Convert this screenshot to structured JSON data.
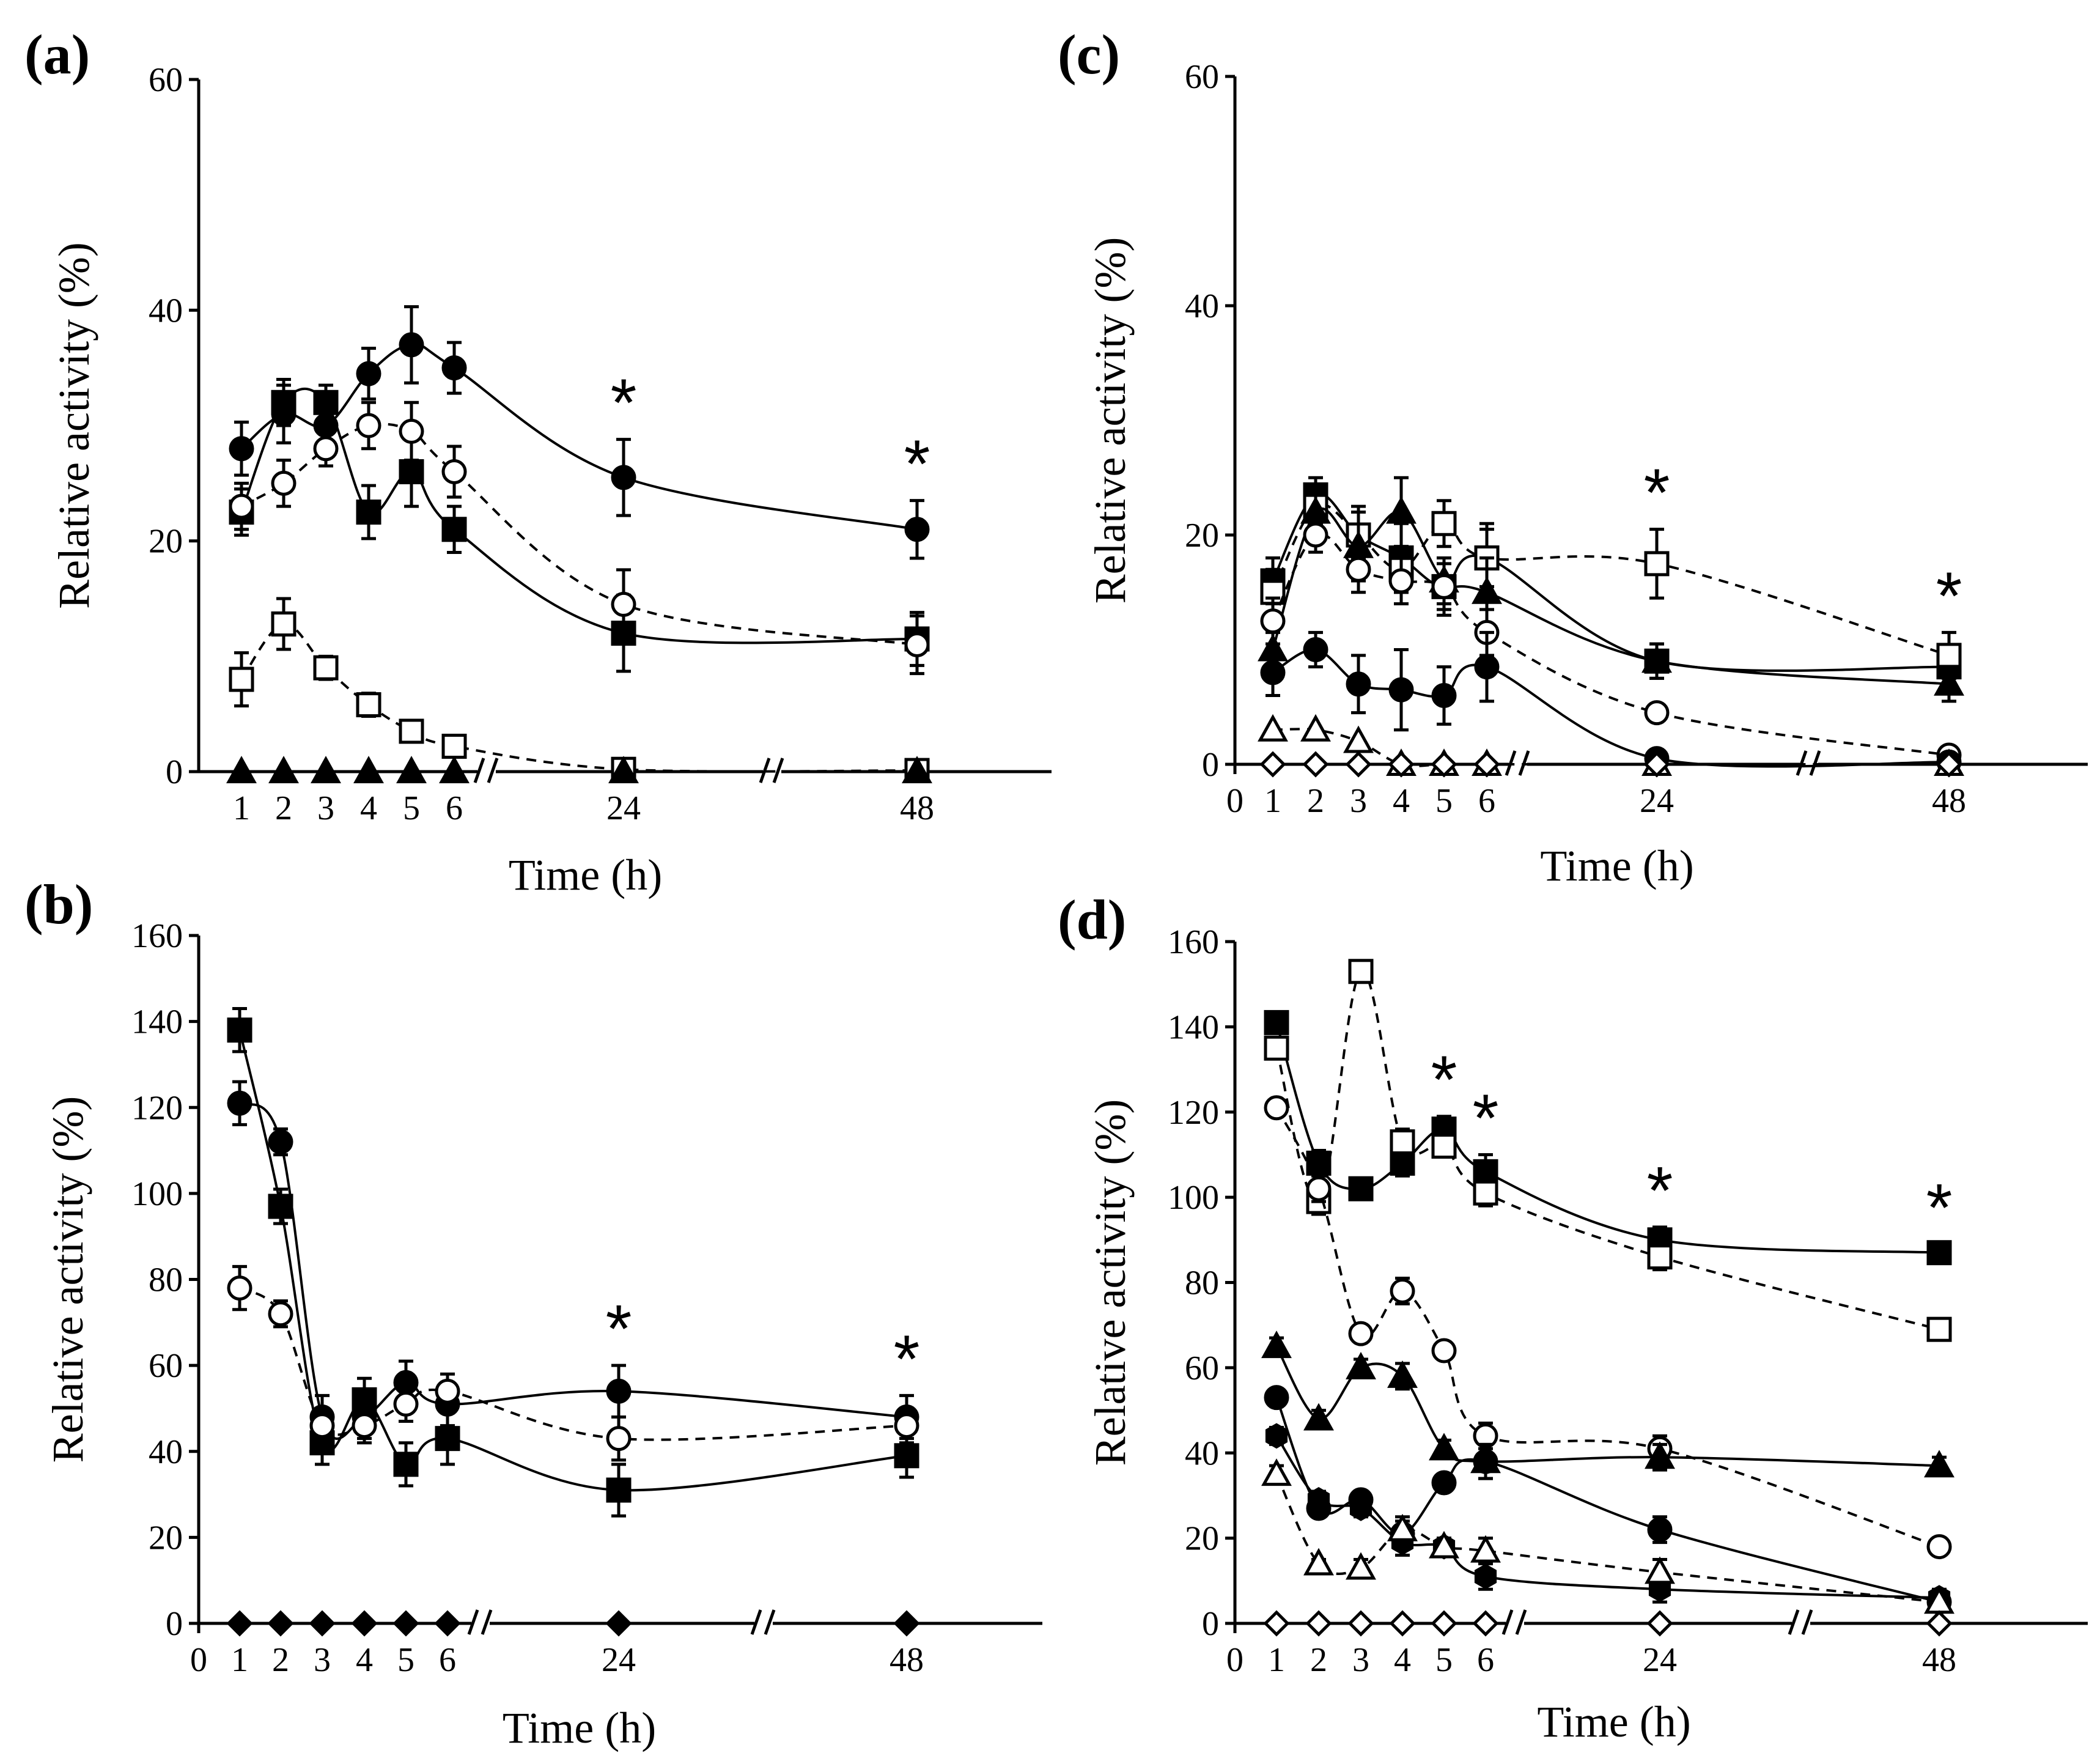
{
  "figure": {
    "time_axis_label": "Time (h)",
    "y_axis_label": "Relative activity (%)"
  },
  "chart_data": [
    {
      "panel": "(a)",
      "type": "line",
      "xlabel": "Time (h)",
      "ylabel": "Relative activity (%)",
      "ylim": [
        0,
        60
      ],
      "yticks": [
        0,
        20,
        40,
        60
      ],
      "xticks": [
        "1",
        "2",
        "3",
        "4",
        "5",
        "6",
        "24",
        "48"
      ],
      "x_axis_break": true,
      "asterisks_at": [
        "24",
        "48"
      ],
      "series": [
        {
          "marker": "filled-circle",
          "line": "solid",
          "values": [
            28,
            31,
            30,
            34.5,
            37,
            35,
            25.5,
            21
          ],
          "errors": [
            2.3,
            2.5,
            2,
            2.2,
            3.3,
            2.2,
            3.3,
            2.5
          ]
        },
        {
          "marker": "filled-square",
          "line": "solid",
          "values": [
            22.5,
            32,
            32,
            22.5,
            26,
            21,
            12,
            11.5
          ],
          "errors": [
            2,
            2,
            1.5,
            2.3,
            3,
            2,
            3.3,
            2.3
          ]
        },
        {
          "marker": "open-circle",
          "line": "dashed",
          "values": [
            23,
            25,
            28,
            30,
            29.5,
            26,
            14.5,
            11
          ],
          "errors": [
            2,
            2,
            1.5,
            2,
            2.5,
            2.2,
            3,
            2.5
          ]
        },
        {
          "marker": "open-square",
          "line": "dashed",
          "values": [
            8,
            12.8,
            9,
            5.8,
            3.5,
            2.2,
            0.2,
            0.1
          ],
          "errors": [
            2.3,
            2.2,
            1,
            1,
            0.8,
            0.5,
            0.2,
            0.1
          ]
        },
        {
          "marker": "filled-triangle",
          "line": "none",
          "values": [
            0,
            0,
            0,
            0,
            0,
            0,
            0,
            0
          ],
          "errors": [
            0,
            0,
            0,
            0,
            0,
            0,
            0,
            0
          ]
        }
      ]
    },
    {
      "panel": "(b)",
      "type": "line",
      "xlabel": "Time (h)",
      "ylabel": "Relative activity (%)",
      "ylim": [
        0,
        160
      ],
      "yticks": [
        0,
        20,
        40,
        60,
        80,
        100,
        120,
        140,
        160
      ],
      "xticks": [
        "0",
        "1",
        "2",
        "3",
        "4",
        "5",
        "6",
        "24",
        "48"
      ],
      "x_axis_break": true,
      "asterisks_at": [
        "24",
        "48"
      ],
      "series": [
        {
          "marker": "filled-circle",
          "line": "solid",
          "values": [
            121,
            112,
            48,
            48,
            56,
            51,
            54,
            48
          ],
          "errors": [
            5,
            3,
            5,
            5,
            5,
            5,
            6,
            5
          ]
        },
        {
          "marker": "filled-square",
          "line": "solid",
          "values": [
            138,
            97,
            42,
            52,
            37,
            43,
            31,
            39
          ],
          "errors": [
            5,
            4,
            5,
            5,
            5,
            6,
            6,
            5
          ]
        },
        {
          "marker": "open-circle",
          "line": "dashed",
          "values": [
            78,
            72,
            46,
            46,
            51,
            54,
            43,
            46
          ],
          "errors": [
            5,
            3,
            3,
            4,
            4,
            4,
            5,
            4
          ]
        },
        {
          "marker": "filled-diamond",
          "line": "none",
          "values": [
            0,
            0,
            0,
            0,
            0,
            0,
            0,
            0
          ],
          "errors": [
            0,
            0,
            0,
            0,
            0,
            0,
            0,
            0
          ]
        }
      ]
    },
    {
      "panel": "(c)",
      "type": "line",
      "xlabel": "Time (h)",
      "ylabel": "Relative activity (%)",
      "ylim": [
        0,
        60
      ],
      "yticks": [
        0,
        20,
        40,
        60
      ],
      "xticks": [
        "0",
        "1",
        "2",
        "3",
        "4",
        "5",
        "6",
        "24",
        "48"
      ],
      "x_axis_break": true,
      "asterisks_at": [
        "24",
        "48"
      ],
      "series": [
        {
          "marker": "filled-square",
          "line": "solid",
          "values": [
            16,
            23.5,
            20,
            18,
            15.5,
            18,
            9,
            8.5
          ],
          "errors": [
            2,
            1.5,
            2.5,
            3,
            2.5,
            3,
            1.5,
            1.5
          ]
        },
        {
          "marker": "open-square",
          "line": "dashed",
          "values": [
            15,
            22.5,
            20,
            17,
            21,
            18,
            17.5,
            9.5
          ],
          "errors": [
            2,
            1.5,
            2,
            2,
            2,
            2.5,
            3,
            2
          ]
        },
        {
          "marker": "filled-triangle",
          "line": "solid",
          "values": [
            10,
            22,
            19,
            22,
            16,
            15,
            9,
            7
          ],
          "errors": [
            1.5,
            2,
            3,
            3,
            2,
            3,
            1.5,
            1.5
          ]
        },
        {
          "marker": "open-circle",
          "line": "dashed",
          "values": [
            12.5,
            20,
            17,
            16,
            15.5,
            11.5,
            4.5,
            0.8
          ],
          "errors": [
            2,
            1.5,
            2,
            2,
            2,
            2,
            0.5,
            0.3
          ]
        },
        {
          "marker": "filled-circle",
          "line": "solid",
          "values": [
            8,
            10,
            7,
            6.5,
            6,
            8.5,
            0.5,
            0.2
          ],
          "errors": [
            2,
            1.5,
            2.5,
            3.5,
            2.5,
            3,
            0.3,
            0.1
          ]
        },
        {
          "marker": "open-triangle",
          "line": "dashed",
          "values": [
            3,
            3,
            2,
            0,
            0,
            0,
            0,
            0
          ],
          "errors": [
            0,
            0,
            0,
            0,
            0,
            0,
            0,
            0
          ]
        },
        {
          "marker": "open-diamond",
          "line": "none",
          "values": [
            0,
            0,
            0,
            0,
            0,
            0,
            0,
            0
          ],
          "errors": [
            0,
            0,
            0,
            0,
            0,
            0,
            0,
            0
          ]
        }
      ]
    },
    {
      "panel": "(d)",
      "type": "line",
      "xlabel": "Time (h)",
      "ylabel": "Relative activity (%)",
      "ylim": [
        0,
        160
      ],
      "yticks": [
        0,
        20,
        40,
        60,
        80,
        100,
        120,
        140,
        160
      ],
      "xticks": [
        "0",
        "1",
        "2",
        "3",
        "4",
        "5",
        "6",
        "24",
        "48"
      ],
      "x_axis_break": true,
      "asterisks_at": [
        "5",
        "6",
        "24",
        "48"
      ],
      "series": [
        {
          "marker": "filled-square",
          "line": "solid",
          "values": [
            141,
            108,
            102,
            108,
            116,
            106,
            90,
            87
          ],
          "errors": [
            2,
            3,
            2,
            3,
            3,
            4,
            3,
            2
          ]
        },
        {
          "marker": "open-square",
          "line": "dashed",
          "values": [
            135,
            99,
            153,
            113,
            112,
            101,
            86,
            69
          ],
          "errors": [
            2,
            3,
            2,
            3,
            2,
            3,
            3,
            2
          ]
        },
        {
          "marker": "open-circle",
          "line": "dashed",
          "values": [
            121,
            102,
            68,
            78,
            64,
            44,
            41,
            18
          ],
          "errors": [
            2,
            3,
            2,
            3,
            2,
            3,
            3,
            2
          ]
        },
        {
          "marker": "filled-triangle",
          "line": "solid",
          "values": [
            65,
            48,
            60,
            58,
            41,
            38,
            39,
            37
          ],
          "errors": [
            2,
            2,
            2,
            3,
            2,
            4,
            3,
            2
          ]
        },
        {
          "marker": "filled-circle",
          "line": "solid",
          "values": [
            53,
            27,
            29,
            21,
            33,
            38,
            22,
            5
          ],
          "errors": [
            2,
            2,
            2,
            3,
            2,
            4,
            3,
            2
          ]
        },
        {
          "marker": "filled-hexagon",
          "line": "solid",
          "values": [
            44,
            29,
            27,
            19,
            18,
            11,
            8,
            6
          ],
          "errors": [
            2,
            2,
            2,
            3,
            2,
            3,
            3,
            2
          ]
        },
        {
          "marker": "open-triangle",
          "line": "dashed",
          "values": [
            35,
            14,
            13,
            22,
            18,
            17,
            12,
            5
          ],
          "errors": [
            2,
            1,
            2,
            3,
            2,
            3,
            3,
            1
          ]
        },
        {
          "marker": "open-diamond",
          "line": "none",
          "values": [
            0,
            0,
            0,
            0,
            0,
            0,
            0,
            0
          ],
          "errors": [
            0,
            0,
            0,
            0,
            0,
            0,
            0,
            0
          ]
        }
      ]
    }
  ]
}
